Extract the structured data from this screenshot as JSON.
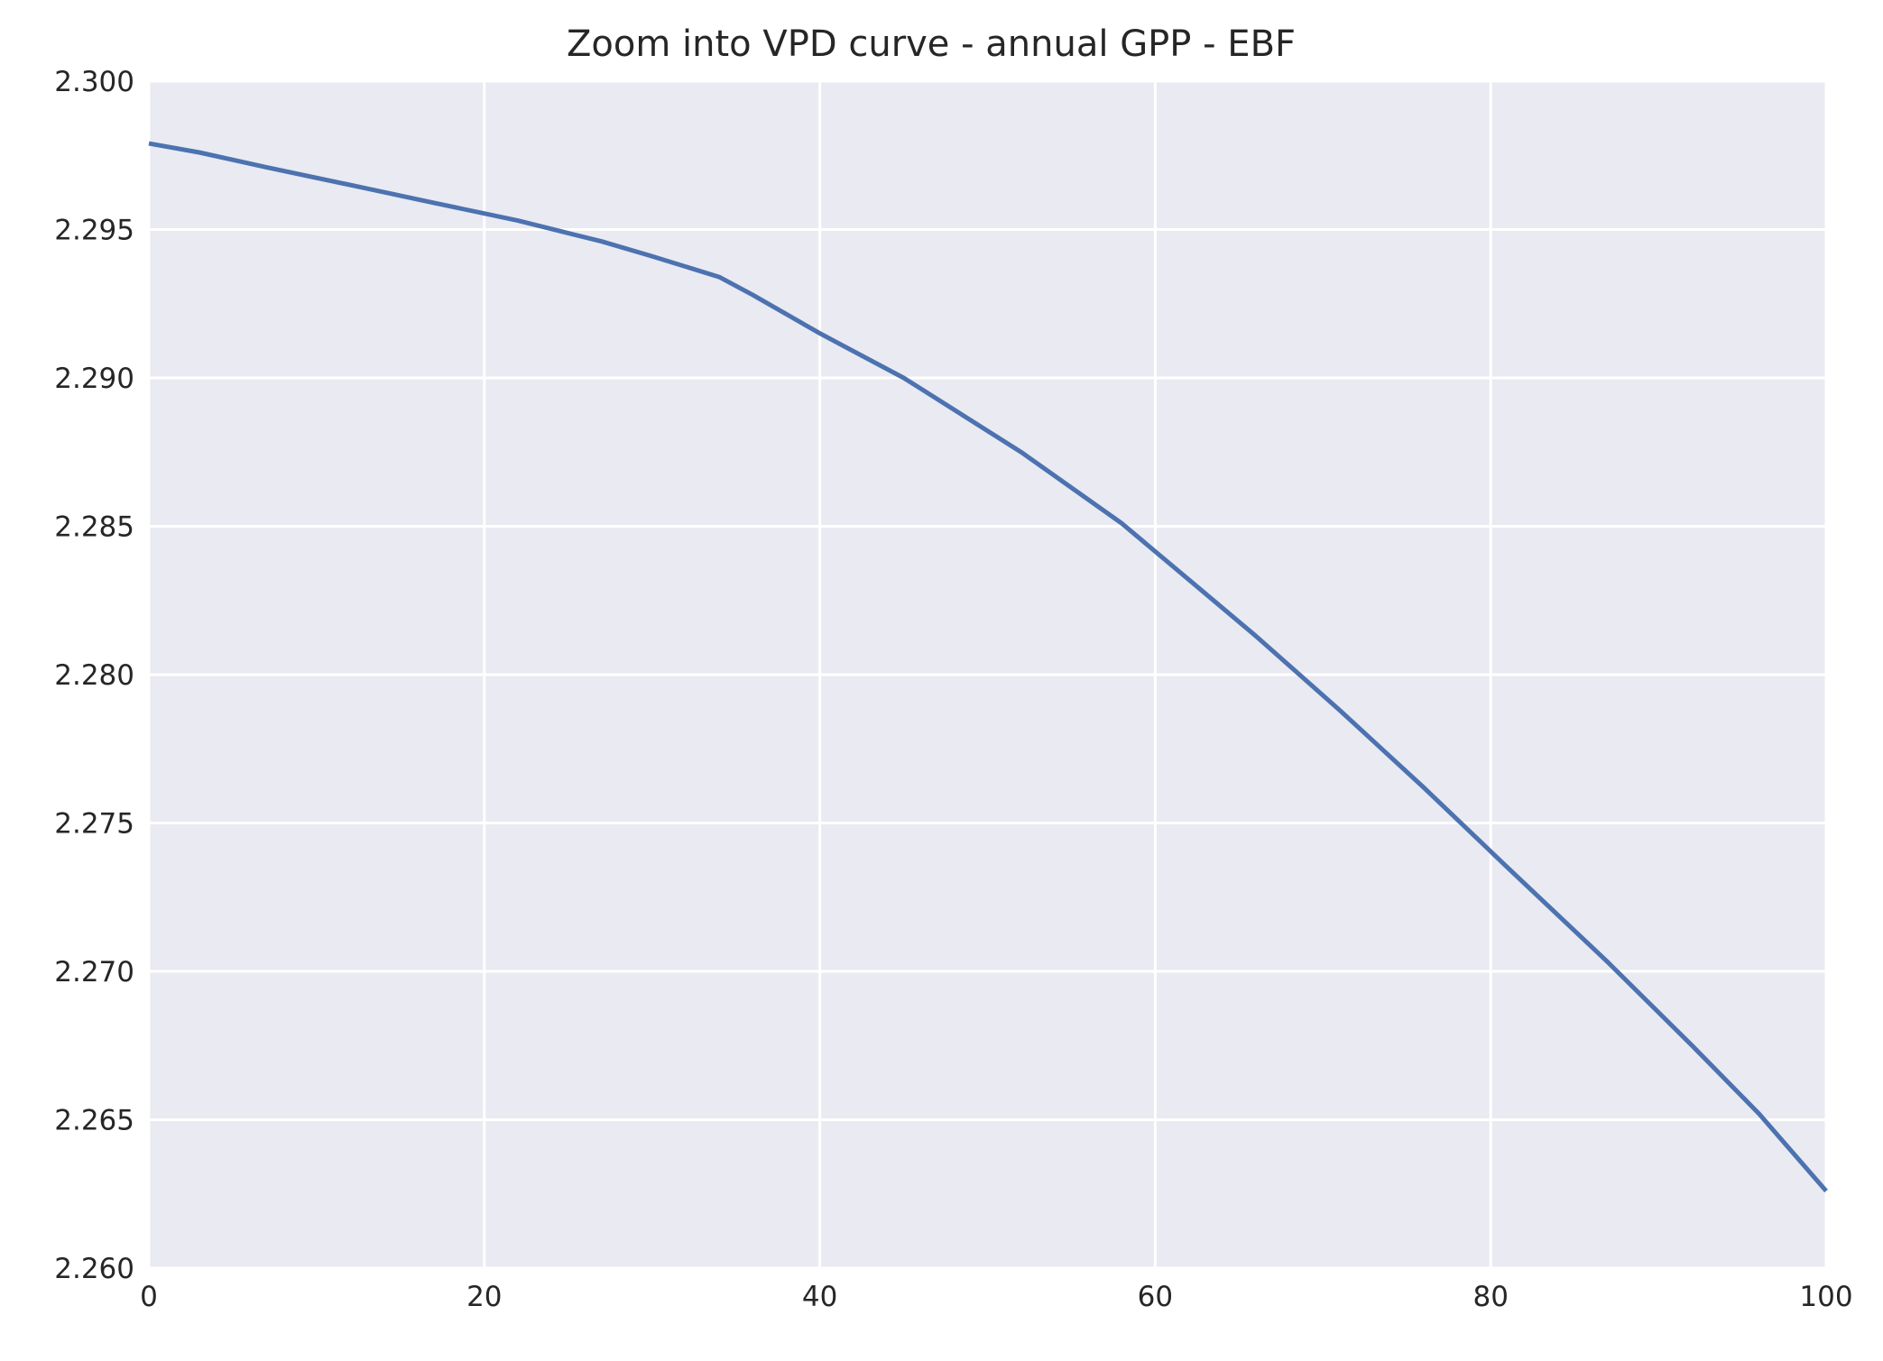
{
  "chart_data": {
    "type": "line",
    "title": "Zoom into VPD curve - annual GPP - EBF",
    "xlabel": "",
    "ylabel": "",
    "xlim": [
      0,
      100
    ],
    "ylim": [
      2.26,
      2.3
    ],
    "xticks": [
      0,
      20,
      40,
      60,
      80,
      100
    ],
    "xtick_labels": [
      "0",
      "20",
      "40",
      "60",
      "80",
      "100"
    ],
    "yticks": [
      2.26,
      2.265,
      2.27,
      2.275,
      2.28,
      2.285,
      2.29,
      2.295,
      2.3
    ],
    "ytick_labels": [
      "2.260",
      "2.265",
      "2.270",
      "2.275",
      "2.280",
      "2.285",
      "2.290",
      "2.295",
      "2.300"
    ],
    "grid": true,
    "background": "#eaeaf2",
    "grid_color": "#ffffff",
    "line_color": "#4c72b0",
    "series": [
      {
        "x": [
          0,
          3,
          7,
          12,
          17,
          22,
          27,
          30,
          34,
          36,
          40,
          45,
          52,
          58,
          62,
          66,
          71,
          76,
          81,
          87,
          92,
          96,
          100
        ],
        "values": [
          2.2979,
          2.2976,
          2.2971,
          2.2965,
          2.2959,
          2.2953,
          2.2946,
          2.2941,
          2.2934,
          2.2928,
          2.2915,
          2.29,
          2.2875,
          2.2851,
          2.2832,
          2.2813,
          2.2788,
          2.2762,
          2.2735,
          2.2703,
          2.2675,
          2.2652,
          2.2626
        ]
      }
    ]
  }
}
